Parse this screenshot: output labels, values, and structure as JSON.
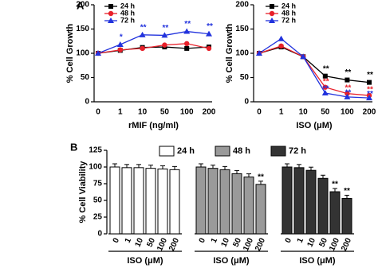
{
  "panel_labels": [
    "A",
    "B"
  ],
  "chart_data": [
    {
      "type": "line",
      "x_label": "rMIF (ng/ml)",
      "y_label": "% Cell Growth",
      "categories": [
        "0",
        "1",
        "10",
        "50",
        "100",
        "200"
      ],
      "ylim": [
        0,
        200
      ],
      "yticks": [
        0,
        50,
        100,
        150,
        200
      ],
      "legend": "top-left",
      "series": [
        {
          "name": "24 h",
          "color": "#000000",
          "marker": "square",
          "values": [
            100,
            106,
            112,
            113,
            110,
            113
          ],
          "annotations": [
            null,
            null,
            null,
            null,
            null,
            null
          ]
        },
        {
          "name": "48 h",
          "color": "#e8202a",
          "marker": "circle",
          "values": [
            100,
            107,
            110,
            117,
            120,
            110
          ],
          "annotations": [
            null,
            null,
            null,
            null,
            null,
            null
          ]
        },
        {
          "name": "72 h",
          "color": "#2233dd",
          "marker": "triangle",
          "values": [
            100,
            118,
            138,
            137,
            145,
            140
          ],
          "annotations": [
            null,
            "*",
            "**",
            "**",
            "**",
            "**"
          ]
        }
      ]
    },
    {
      "type": "line",
      "x_label": "ISO (μM)",
      "y_label": "% Cell Growth",
      "categories": [
        "0",
        "1",
        "10",
        "50",
        "100",
        "200"
      ],
      "ylim": [
        0,
        200
      ],
      "yticks": [
        0,
        50,
        100,
        150,
        200
      ],
      "legend": "top-left",
      "series": [
        {
          "name": "24 h",
          "color": "#000000",
          "marker": "square",
          "values": [
            100,
            113,
            93,
            53,
            45,
            40
          ],
          "annotations": [
            null,
            null,
            null,
            "**",
            "**",
            "**"
          ]
        },
        {
          "name": "48 h",
          "color": "#e8202a",
          "marker": "circle",
          "values": [
            100,
            115,
            93,
            30,
            17,
            13
          ],
          "annotations": [
            null,
            null,
            null,
            "**",
            "**",
            "**"
          ]
        },
        {
          "name": "72 h",
          "color": "#2233dd",
          "marker": "triangle",
          "values": [
            100,
            130,
            93,
            18,
            10,
            8
          ],
          "annotations": [
            null,
            null,
            null,
            "**",
            "**",
            "**"
          ]
        }
      ]
    },
    {
      "type": "bar",
      "x_label": "ISO (μM)",
      "y_label": "% Cell Viability",
      "categories": [
        "0",
        "1",
        "10",
        "50",
        "100",
        "200"
      ],
      "ylim": [
        0,
        125
      ],
      "yticks": [
        0,
        25,
        50,
        75,
        100,
        125
      ],
      "legend": "top",
      "series": [
        {
          "name": "24 h",
          "color": "#ffffff",
          "values": [
            100,
            99,
            99,
            98,
            97,
            96
          ],
          "annotations": [
            null,
            null,
            null,
            null,
            null,
            null
          ]
        },
        {
          "name": "48 h",
          "color": "#9a9a9a",
          "values": [
            100,
            98,
            96,
            90,
            85,
            74
          ],
          "annotations": [
            null,
            null,
            null,
            null,
            null,
            "**"
          ]
        },
        {
          "name": "72 h",
          "color": "#333333",
          "values": [
            100,
            99,
            95,
            83,
            63,
            53
          ],
          "annotations": [
            null,
            null,
            null,
            null,
            "**",
            "**"
          ]
        }
      ]
    }
  ]
}
